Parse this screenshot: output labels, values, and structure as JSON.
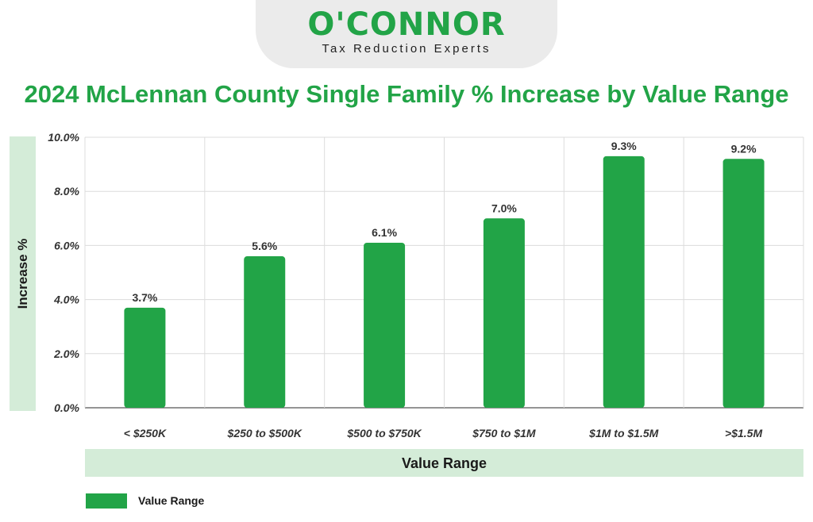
{
  "logo": {
    "brand": "O'CONNOR",
    "tagline": "Tax Reduction Experts"
  },
  "colors": {
    "brand_green": "#22a447",
    "band_green": "#d4ecd8",
    "grid": "#dcdcdc"
  },
  "chart_data": {
    "type": "bar",
    "title": "2024 McLennan County Single Family % Increase by Value Range",
    "xlabel": "Value Range",
    "ylabel": "Increase %",
    "categories": [
      "< $250K",
      "$250 to $500K",
      "$500 to $750K",
      "$750 to $1M",
      "$1M to $1.5M",
      ">$1.5M"
    ],
    "series": [
      {
        "name": "Value Range",
        "values": [
          3.7,
          5.6,
          6.1,
          7.0,
          9.3,
          9.2
        ],
        "labels": [
          "3.7%",
          "5.6%",
          "6.1%",
          "7.0%",
          "9.3%",
          "9.2%"
        ]
      }
    ],
    "ylim": [
      0,
      10
    ],
    "yticks": [
      "0.0%",
      "2.0%",
      "4.0%",
      "6.0%",
      "8.0%",
      "10.0%"
    ],
    "grid": true,
    "legend": "bottom-left"
  }
}
